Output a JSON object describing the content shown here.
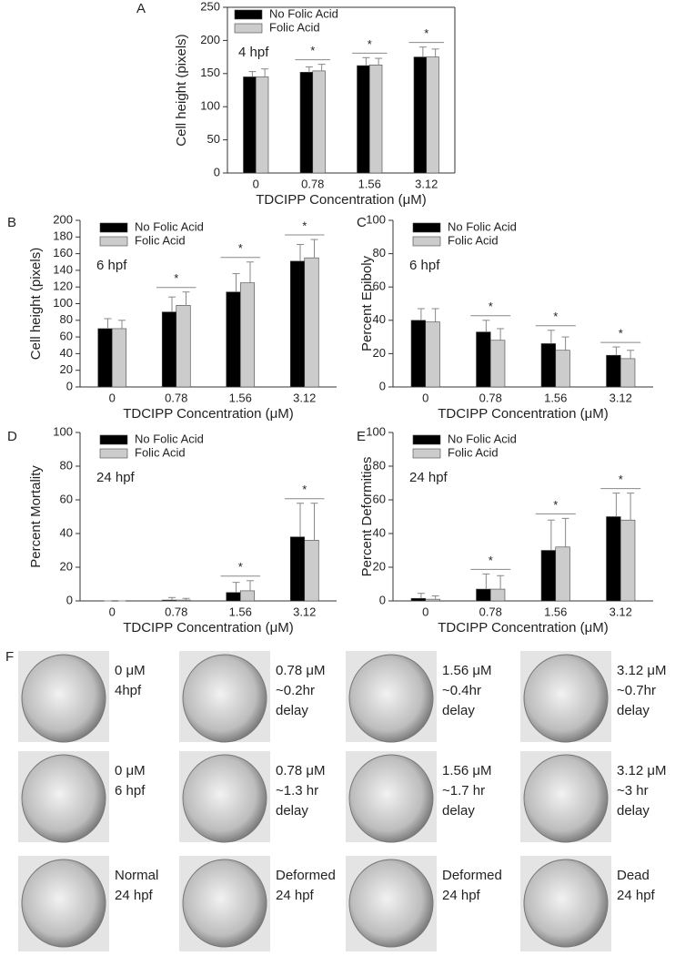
{
  "chart_data": [
    {
      "type": "bar",
      "panel": "A",
      "annotation": "4 hpf",
      "ylabel": "Cell height (pixels)",
      "xlabel": "TDCIPP Concentration (μM)",
      "categories": [
        "0",
        "0.78",
        "1.56",
        "3.12"
      ],
      "series": [
        {
          "name": "No Folic Acid",
          "color": "#000000",
          "values": [
            145,
            152,
            162,
            175
          ],
          "errors": [
            8,
            8,
            12,
            15
          ]
        },
        {
          "name": "Folic Acid",
          "color": "#cccccc",
          "values": [
            145,
            154,
            163,
            175
          ],
          "errors": [
            12,
            10,
            10,
            12
          ]
        }
      ],
      "significance": [
        null,
        "*",
        "*",
        "*"
      ],
      "ylim": [
        0,
        250
      ],
      "yticks": [
        0,
        50,
        100,
        150,
        200,
        250
      ],
      "legend": "upper left",
      "frame": true
    },
    {
      "type": "bar",
      "panel": "B",
      "annotation": "6 hpf",
      "ylabel": "Cell height (pixels)",
      "xlabel": "TDCIPP Concentration (μM)",
      "categories": [
        "0",
        "0.78",
        "1.56",
        "3.12"
      ],
      "series": [
        {
          "name": "No Folic Acid",
          "color": "#000000",
          "values": [
            70,
            90,
            114,
            151
          ],
          "errors": [
            12,
            18,
            22,
            20
          ]
        },
        {
          "name": "Folic Acid",
          "color": "#cccccc",
          "values": [
            70,
            98,
            125,
            155
          ],
          "errors": [
            10,
            16,
            25,
            22
          ]
        }
      ],
      "significance": [
        null,
        "*",
        "*",
        "*"
      ],
      "ylim": [
        0,
        200
      ],
      "yticks": [
        0,
        20,
        40,
        60,
        80,
        100,
        120,
        140,
        160,
        180,
        200
      ],
      "legend": "upper left",
      "frame": false
    },
    {
      "type": "bar",
      "panel": "C",
      "annotation": "6 hpf",
      "ylabel": "Percent Epiboly",
      "xlabel": "TDCIPP Concentration (μM)",
      "categories": [
        "0",
        "0.78",
        "1.56",
        "3.12"
      ],
      "series": [
        {
          "name": "No Folic Acid",
          "color": "#000000",
          "values": [
            40,
            33,
            26,
            19
          ],
          "errors": [
            7,
            7,
            8,
            5
          ]
        },
        {
          "name": "Folic Acid",
          "color": "#cccccc",
          "values": [
            39,
            28,
            22,
            17
          ],
          "errors": [
            8,
            7,
            8,
            5
          ]
        }
      ],
      "significance": [
        null,
        "*",
        "*",
        "*"
      ],
      "ylim": [
        0,
        100
      ],
      "yticks": [
        0,
        20,
        40,
        60,
        80,
        100
      ],
      "legend": "upper left",
      "frame": false
    },
    {
      "type": "bar",
      "panel": "D",
      "annotation": "24 hpf",
      "ylabel": "Percent Mortality",
      "xlabel": "TDCIPP Concentration (μM)",
      "categories": [
        "0",
        "0.78",
        "1.56",
        "3.12"
      ],
      "series": [
        {
          "name": "No Folic Acid",
          "color": "#000000",
          "values": [
            0,
            0.5,
            5,
            38
          ],
          "errors": [
            0,
            1.5,
            6,
            20
          ]
        },
        {
          "name": "Folic Acid",
          "color": "#cccccc",
          "values": [
            0,
            0.5,
            6,
            36
          ],
          "errors": [
            0,
            1,
            6,
            22
          ]
        }
      ],
      "significance": [
        null,
        null,
        "*",
        "*"
      ],
      "ylim": [
        0,
        100
      ],
      "yticks": [
        0,
        20,
        40,
        60,
        80,
        100
      ],
      "legend": "upper left",
      "frame": false
    },
    {
      "type": "bar",
      "panel": "E",
      "annotation": "24 hpf",
      "ylabel": "Percent Deformities",
      "xlabel": "TDCIPP Concentration (μM)",
      "categories": [
        "0",
        "0.78",
        "1.56",
        "3.12"
      ],
      "series": [
        {
          "name": "No Folic Acid",
          "color": "#000000",
          "values": [
            1.5,
            7,
            30,
            50
          ],
          "errors": [
            3,
            9,
            18,
            14
          ]
        },
        {
          "name": "Folic Acid",
          "color": "#cccccc",
          "values": [
            1,
            7,
            32,
            48
          ],
          "errors": [
            2,
            8,
            17,
            16
          ]
        }
      ],
      "significance": [
        null,
        "*",
        "*",
        "*"
      ],
      "ylim": [
        0,
        100
      ],
      "yticks": [
        0,
        20,
        40,
        60,
        80,
        100
      ],
      "legend": "upper left",
      "frame": false
    }
  ],
  "panel_f": {
    "label": "F",
    "rows": [
      [
        [
          "0 μM",
          "4hpf"
        ],
        [
          "0.78 μM",
          "~0.2hr",
          "delay"
        ],
        [
          "1.56 μM",
          "~0.4hr",
          "delay"
        ],
        [
          "3.12 μM",
          "~0.7hr",
          "delay"
        ]
      ],
      [
        [
          "0 μM",
          "6 hpf"
        ],
        [
          "0.78 μM",
          "~1.3 hr",
          "delay"
        ],
        [
          "1.56 μM",
          "~1.7 hr",
          "delay"
        ],
        [
          "3.12 μM",
          "~3 hr",
          "delay"
        ]
      ],
      [
        [
          "Normal",
          "24 hpf"
        ],
        [
          "Deformed",
          "24 hpf"
        ],
        [
          "Deformed",
          "24 hpf"
        ],
        [
          "Dead",
          "24 hpf"
        ]
      ]
    ]
  }
}
